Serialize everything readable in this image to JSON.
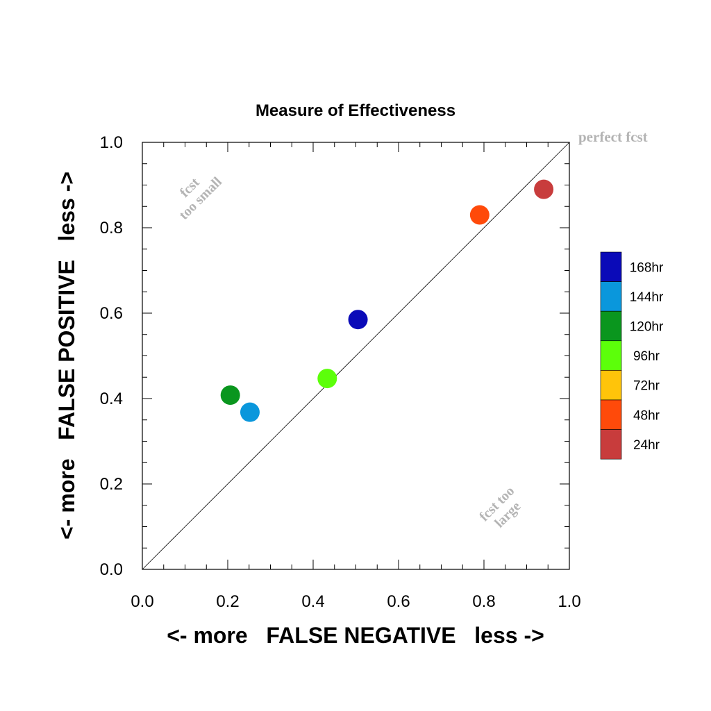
{
  "chart_data": {
    "type": "scatter",
    "title": "Measure of Effectiveness",
    "xlabel": "<- more   FALSE NEGATIVE   less ->",
    "ylabel": "<- more   FALSE POSITIVE   less ->",
    "xlim": [
      0.0,
      1.0
    ],
    "ylim": [
      0.0,
      1.0
    ],
    "xticks": [
      "0.0",
      "0.2",
      "0.4",
      "0.6",
      "0.8",
      "1.0"
    ],
    "yticks": [
      "0.0",
      "0.2",
      "0.4",
      "0.6",
      "0.8",
      "1.0"
    ],
    "grid": false,
    "diagonal_line": true,
    "annotations": {
      "perfect": "perfect fcst",
      "small_line1": "fcst",
      "small_line2": "too small",
      "large_line1": "fcst too",
      "large_line2": "large"
    },
    "legend": {
      "placement": "right",
      "entries": [
        {
          "label": "168hr",
          "color": "#0a0ab8"
        },
        {
          "label": "144hr",
          "color": "#0a97dc"
        },
        {
          "label": "120hr",
          "color": "#0a961e"
        },
        {
          "label": "96hr",
          "color": "#5cff0a"
        },
        {
          "label": "72hr",
          "color": "#ffc40a"
        },
        {
          "label": "48hr",
          "color": "#ff4a0a"
        },
        {
          "label": "24hr",
          "color": "#c83c3c"
        }
      ]
    },
    "points": [
      {
        "lead": "24hr",
        "x": 0.94,
        "y": 0.89,
        "color": "#c83c3c"
      },
      {
        "lead": "48hr",
        "x": 0.79,
        "y": 0.83,
        "color": "#ff4a0a"
      },
      {
        "lead": "96hr",
        "x": 0.433,
        "y": 0.447,
        "color": "#5cff0a"
      },
      {
        "lead": "120hr",
        "x": 0.206,
        "y": 0.408,
        "color": "#0a961e"
      },
      {
        "lead": "144hr",
        "x": 0.252,
        "y": 0.368,
        "color": "#0a97dc"
      },
      {
        "lead": "168hr",
        "x": 0.505,
        "y": 0.585,
        "color": "#0a0ab8"
      }
    ]
  }
}
